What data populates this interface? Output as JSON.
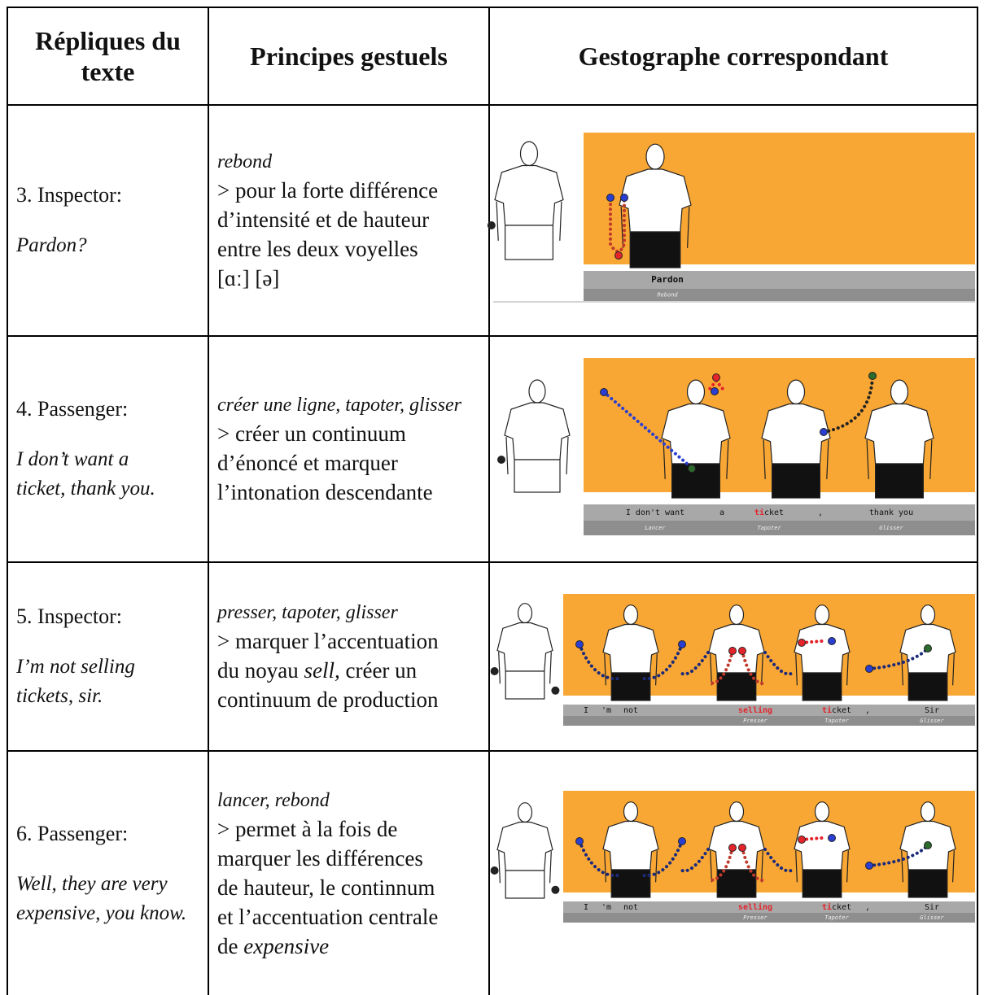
{
  "table": {
    "header": [
      "Répliques du texte",
      "Principes gestuels",
      "Gestographe correspondant"
    ],
    "rows": [
      {
        "speaker": "3. Inspector:",
        "line": [
          "Pardon?"
        ],
        "principle": "rebond",
        "description": [
          [
            "> pour la forte différence"
          ],
          [
            "d’intensité et de hauteur"
          ],
          [
            "entre les deux voyelles"
          ],
          [
            "[ɑː] [ə]"
          ]
        ],
        "gestograph": {
          "words": [
            "Pardon"
          ],
          "gestures": [
            "Rebond"
          ]
        }
      },
      {
        "speaker": "4. Passenger:",
        "line": [
          "I don’t want a",
          "ticket, thank you."
        ],
        "principle": "créer une ligne, tapoter, glisser",
        "description": [
          [
            "> créer un continuum"
          ],
          [
            "d’énoncé et marquer"
          ],
          [
            "l’intonation descendante"
          ]
        ],
        "gestograph": {
          "words": [
            "I don't want",
            "a",
            [
              {
                "text": "ti",
                "color": "#e3242b"
              },
              "cket"
            ],
            ",",
            "thank you"
          ],
          "gestures": [
            "Lancer",
            "Tapoter",
            "Glisser"
          ]
        }
      },
      {
        "speaker": "5. Inspector:",
        "line": [
          "I’m not selling",
          "tickets, sir."
        ],
        "principle": "presser, tapoter, glisser",
        "description": [
          [
            "> marquer l’accentuation"
          ],
          [
            "du noyau ",
            {
              "text": "sell,",
              "style": "italic"
            },
            " créer un"
          ],
          [
            "continuum de production"
          ]
        ],
        "gestograph": {
          "words": [
            "I",
            "'m",
            "not",
            [
              {
                "text": "selling",
                "color": "#e3242b"
              }
            ],
            [
              {
                "text": "ti",
                "color": "#e3242b"
              },
              "cket"
            ],
            ",",
            "Sir"
          ],
          "gestures": [
            "Presser",
            "Tapoter",
            "Glisser"
          ]
        }
      },
      {
        "speaker": "6. Passenger:",
        "line": [
          "Well, they are very",
          "expensive, you know."
        ],
        "principle": "lancer, rebond",
        "description": [
          [
            "> permet à la fois de"
          ],
          [
            "marquer les différences"
          ],
          [
            "de hauteur, le continnum"
          ],
          [
            "et l’accentuation centrale"
          ],
          [
            "de ",
            {
              "text": "expensive",
              "style": "italic"
            }
          ]
        ],
        "gestograph": {
          "words": [
            "I",
            "'m",
            "not",
            [
              {
                "text": "selling",
                "color": "#e3242b"
              }
            ],
            [
              {
                "text": "ti",
                "color": "#e3242b"
              },
              "cket"
            ],
            ",",
            "Sir"
          ],
          "gestures": [
            "Presser",
            "Tapoter",
            "Glisser"
          ]
        }
      }
    ]
  }
}
